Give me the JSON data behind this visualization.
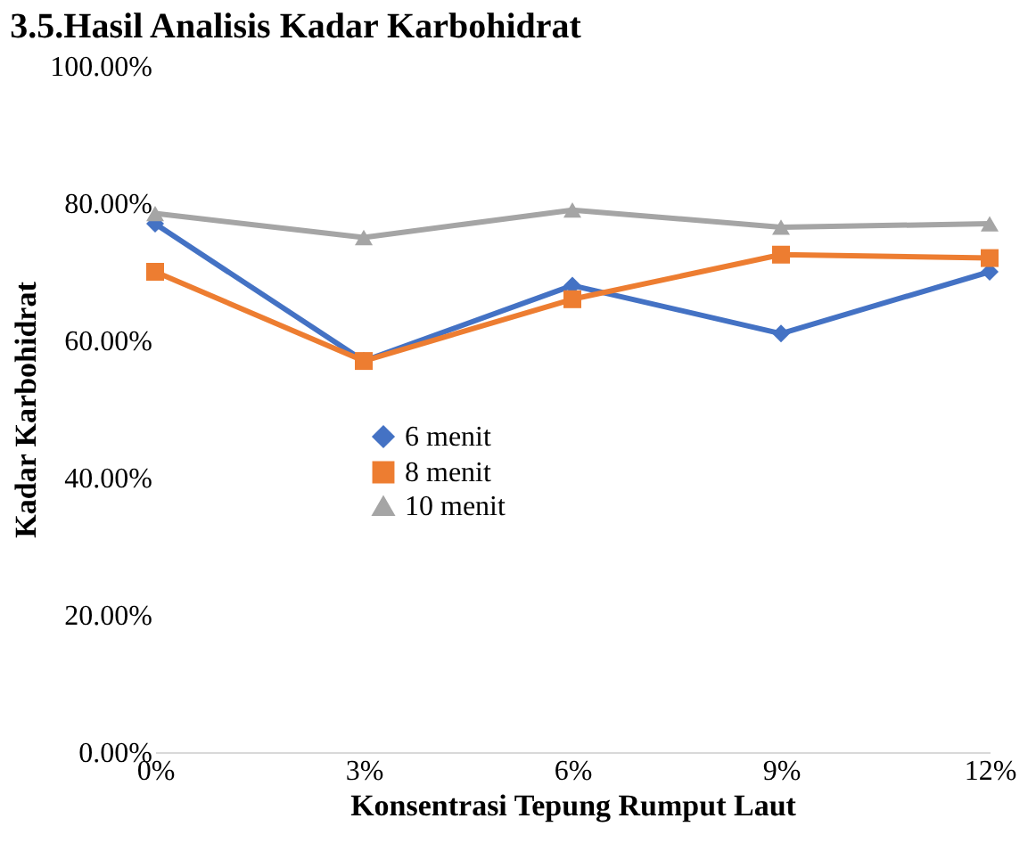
{
  "chart_data": {
    "type": "line",
    "title": "3.5.Hasil Analisis Kadar Karbohidrat",
    "xlabel": "Konsentrasi Tepung Rumput  Laut",
    "ylabel": "Kadar  Karbohidrat",
    "categories": [
      "0%",
      "3%",
      "6%",
      "9%",
      "12%"
    ],
    "series": [
      {
        "name": "6 menit",
        "color": "#4472c4",
        "marker": "diamond",
        "values": [
          0.77,
          0.57,
          0.68,
          0.61,
          0.7
        ]
      },
      {
        "name": "8 menit",
        "color": "#ed7d31",
        "marker": "square",
        "values": [
          0.7,
          0.57,
          0.66,
          0.725,
          0.72
        ]
      },
      {
        "name": "10 menit",
        "color": "#a5a5a5",
        "marker": "triangle",
        "values": [
          0.785,
          0.75,
          0.79,
          0.765,
          0.77
        ]
      }
    ],
    "ylim": [
      0,
      1
    ],
    "yticks": [
      {
        "value": 0,
        "label": "0.00%"
      },
      {
        "value": 0.2,
        "label": "20.00%"
      },
      {
        "value": 0.4,
        "label": "40.00%"
      },
      {
        "value": 0.6,
        "label": "60.00%"
      },
      {
        "value": 0.8,
        "label": "80.00%"
      },
      {
        "value": 1,
        "label": "100.00%"
      }
    ],
    "grid": false,
    "legend": "bottom"
  }
}
